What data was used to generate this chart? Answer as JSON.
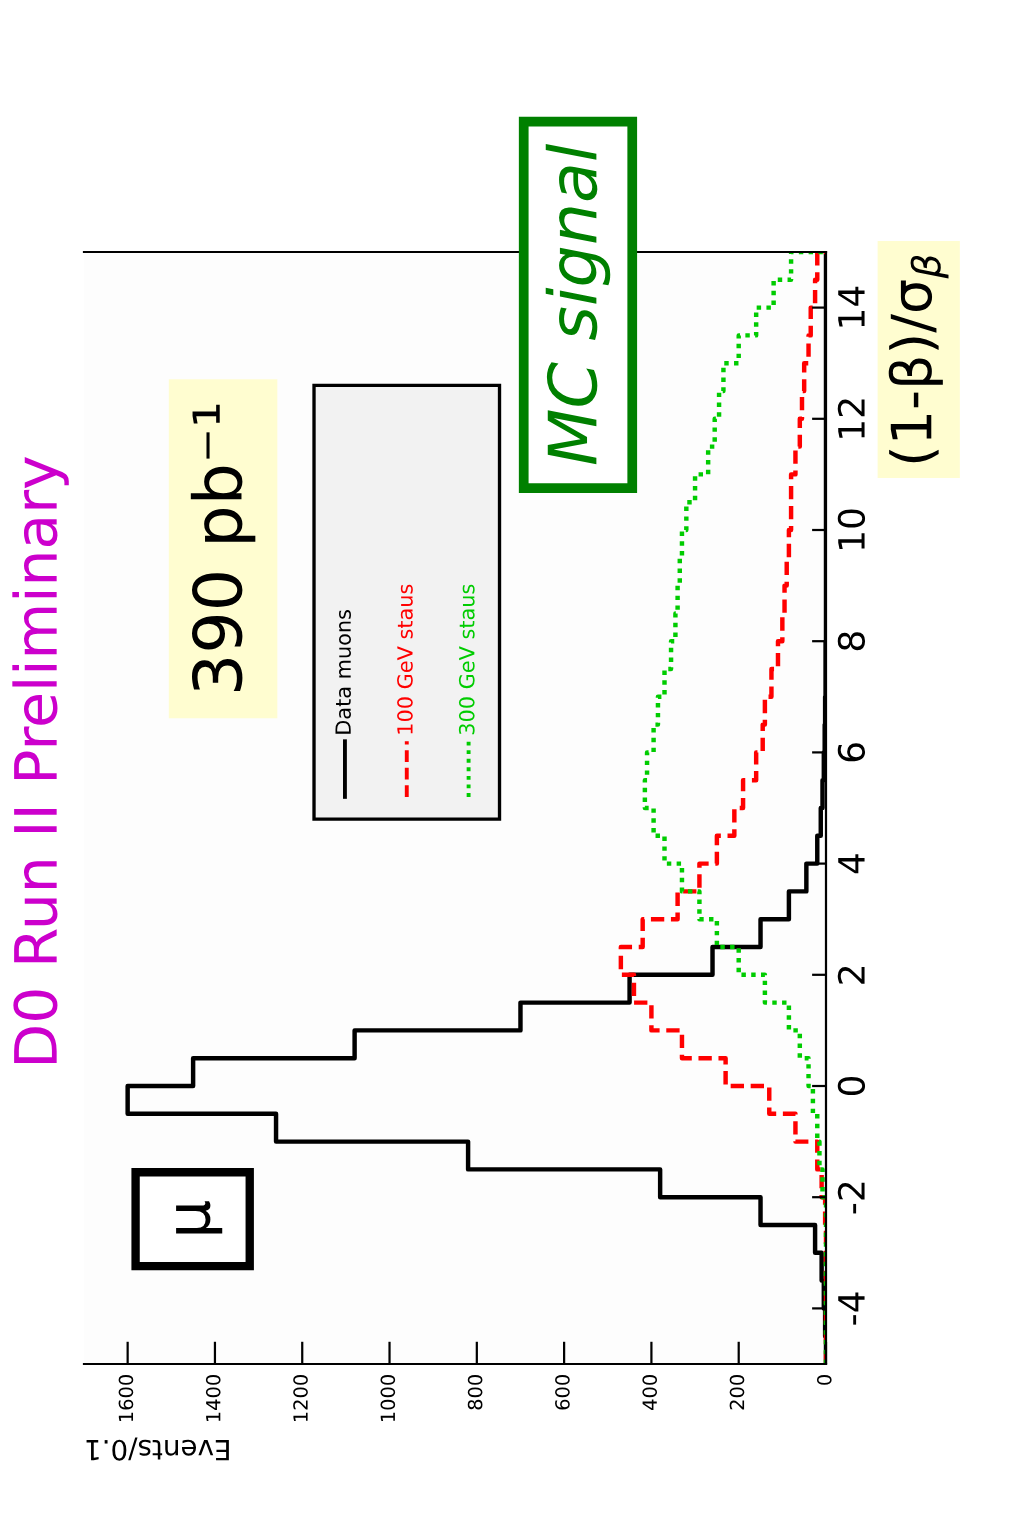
{
  "chart_data": {
    "type": "histogram",
    "orientation": "horizontal",
    "title": "D0 Run II Preliminary",
    "xlabel": "Events/0.1",
    "ylabel": "(1-β)/σ$_{β}$",
    "bins": [
      -5,
      -4.5,
      -4,
      -3.5,
      -3,
      -2.5,
      -2,
      -1.5,
      -1,
      -0.5,
      0,
      0.5,
      1,
      1.5,
      2,
      2.5,
      3,
      3.5,
      4,
      4.5,
      5,
      5.5,
      6,
      6.5,
      7,
      7.5,
      8,
      8.5,
      9,
      9.5,
      10,
      10.5,
      11,
      11.5,
      12,
      12.5,
      13,
      13.5,
      14,
      14.5,
      15
    ],
    "series": [
      {
        "name": "Data muons",
        "color": "#000000",
        "line_style": "solid",
        "values": [
          0,
          2,
          5,
          10,
          25,
          150,
          380,
          820,
          1260,
          1600,
          1450,
          1080,
          700,
          450,
          260,
          150,
          85,
          45,
          20,
          12,
          8,
          5,
          3,
          2,
          1,
          1,
          0,
          0,
          0,
          0,
          0,
          0,
          0,
          0,
          0,
          0,
          0,
          0,
          0,
          0
        ]
      },
      {
        "name": "100 GeV staus",
        "color": "#ff0000",
        "line_style": "dashed",
        "values": [
          0,
          0,
          0,
          0,
          0,
          2,
          10,
          20,
          70,
          130,
          230,
          330,
          400,
          440,
          470,
          420,
          340,
          290,
          250,
          210,
          190,
          160,
          145,
          140,
          125,
          110,
          100,
          95,
          90,
          85,
          80,
          80,
          70,
          60,
          55,
          50,
          40,
          35,
          25,
          20
        ]
      },
      {
        "name": "300 GeV staus",
        "color": "#00cc00",
        "line_style": "dotted",
        "values": [
          0,
          0,
          0,
          0,
          0,
          0,
          8,
          15,
          20,
          30,
          40,
          60,
          85,
          140,
          200,
          250,
          290,
          330,
          370,
          395,
          415,
          410,
          395,
          385,
          370,
          355,
          345,
          340,
          335,
          330,
          320,
          300,
          270,
          255,
          245,
          235,
          200,
          160,
          120,
          80
        ]
      }
    ],
    "xlim": [
      1700,
      0
    ],
    "xticks": [
      0,
      200,
      400,
      600,
      800,
      1000,
      1200,
      1400,
      1600
    ],
    "ylim": [
      -5,
      15
    ],
    "yticks": [
      -4,
      -2,
      0,
      2,
      4,
      6,
      8,
      10,
      12,
      14
    ],
    "grid": false,
    "legend": "top left",
    "annotations": [
      "390 pb⁻¹",
      "MC signal",
      "μ"
    ]
  }
}
